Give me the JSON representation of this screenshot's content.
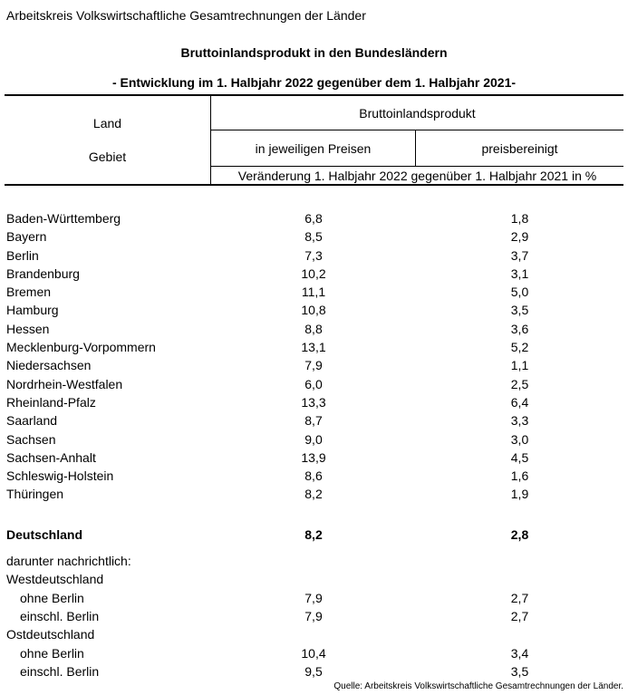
{
  "header": {
    "agency": "Arbeitskreis Volkswirtschaftliche Gesamtrechnungen der Länder",
    "title": "Bruttoinlandsprodukt in den Bundesländern",
    "subtitle": "- Entwicklung im 1. Halbjahr 2022 gegenüber dem 1. Halbjahr 2021-"
  },
  "table": {
    "row_header": {
      "line1": "Land",
      "line2": "Gebiet"
    },
    "value_group": "Bruttoinlandsprodukt",
    "col_nominal": "in jeweiligen Preisen",
    "col_real": "preisbereinigt",
    "unit_note": "Veränderung 1. Halbjahr 2022 gegenüber 1. Halbjahr 2021 in %",
    "rows": [
      {
        "label": "Baden-Württemberg",
        "nominal": "6,8",
        "real": "1,8"
      },
      {
        "label": "Bayern",
        "nominal": "8,5",
        "real": "2,9"
      },
      {
        "label": "Berlin",
        "nominal": "7,3",
        "real": "3,7"
      },
      {
        "label": "Brandenburg",
        "nominal": "10,2",
        "real": "3,1"
      },
      {
        "label": "Bremen",
        "nominal": "11,1",
        "real": "5,0"
      },
      {
        "label": "Hamburg",
        "nominal": "10,8",
        "real": "3,5"
      },
      {
        "label": "Hessen",
        "nominal": "8,8",
        "real": "3,6"
      },
      {
        "label": "Mecklenburg-Vorpommern",
        "nominal": "13,1",
        "real": "5,2"
      },
      {
        "label": "Niedersachsen",
        "nominal": "7,9",
        "real": "1,1"
      },
      {
        "label": "Nordrhein-Westfalen",
        "nominal": "6,0",
        "real": "2,5"
      },
      {
        "label": "Rheinland-Pfalz",
        "nominal": "13,3",
        "real": "6,4"
      },
      {
        "label": "Saarland",
        "nominal": "8,7",
        "real": "3,3"
      },
      {
        "label": "Sachsen",
        "nominal": "9,0",
        "real": "3,0"
      },
      {
        "label": "Sachsen-Anhalt",
        "nominal": "13,9",
        "real": "4,5"
      },
      {
        "label": "Schleswig-Holstein",
        "nominal": "8,6",
        "real": "1,6"
      },
      {
        "label": "Thüringen",
        "nominal": "8,2",
        "real": "1,9"
      }
    ],
    "total": {
      "label": "Deutschland",
      "nominal": "8,2",
      "real": "2,8"
    },
    "note_label": "darunter nachrichtlich:",
    "breakdown": [
      {
        "label": "Westdeutschland",
        "nominal": "",
        "real": ""
      },
      {
        "label": "ohne Berlin",
        "nominal": "7,9",
        "real": "2,7"
      },
      {
        "label": "einschl. Berlin",
        "nominal": "7,9",
        "real": "2,7"
      },
      {
        "label": "Ostdeutschland",
        "nominal": "",
        "real": ""
      },
      {
        "label": "ohne Berlin",
        "nominal": "10,4",
        "real": "3,4"
      },
      {
        "label": "einschl. Berlin",
        "nominal": "9,5",
        "real": "3,5"
      }
    ]
  },
  "footer": {
    "source": "Quelle: Arbeitskreis Volkswirtschaftliche Gesamtrechnungen der Länder."
  }
}
